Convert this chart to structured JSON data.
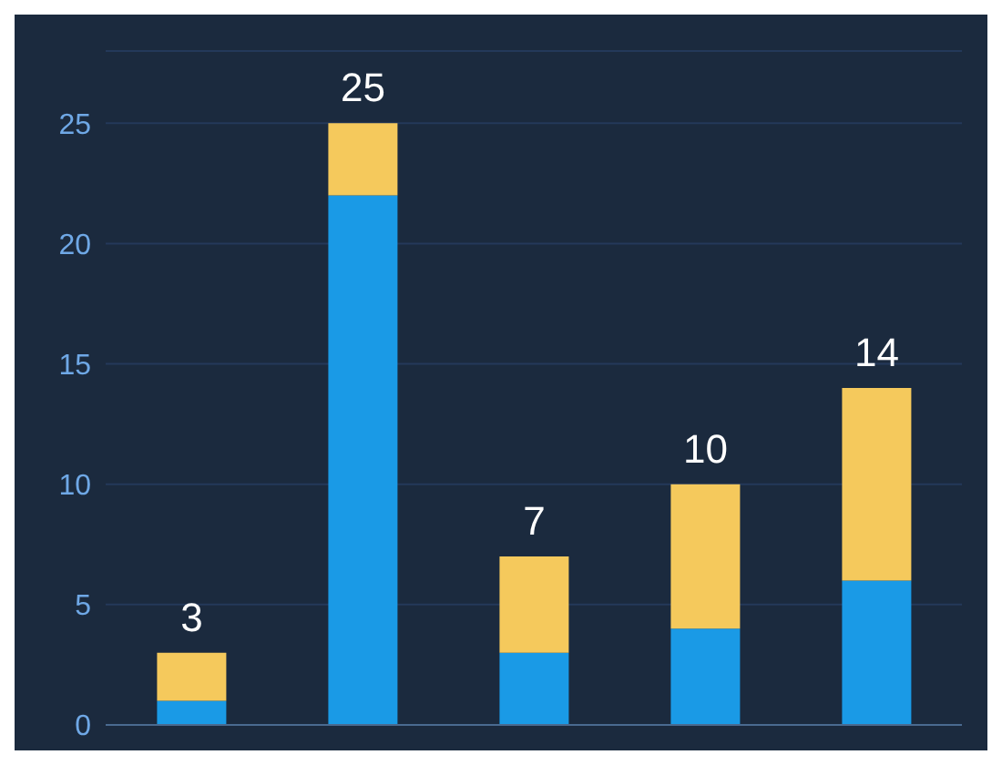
{
  "chart_data": {
    "type": "bar",
    "stacked": true,
    "categories": [
      null,
      null,
      null,
      null,
      null
    ],
    "series": [
      {
        "color": "#1a9ae6",
        "values": [
          1,
          22,
          3,
          4,
          6
        ]
      },
      {
        "color": "#f5c95c",
        "values": [
          2,
          3,
          4,
          6,
          8
        ]
      }
    ],
    "totals": [
      "3",
      "25",
      "7",
      "10",
      "14"
    ],
    "ylim": [
      0,
      28
    ],
    "yticks": [
      0,
      5,
      10,
      15,
      20,
      25
    ],
    "grid": "y",
    "tick_labels": "y"
  }
}
